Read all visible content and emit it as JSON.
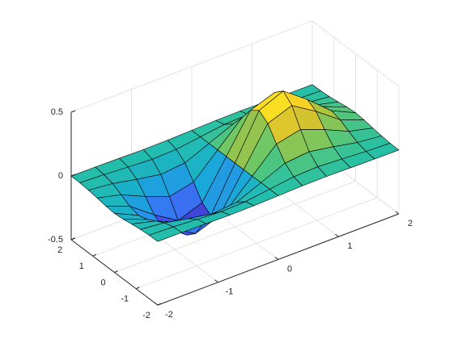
{
  "chart_data": {
    "type": "surface",
    "x": [
      -2,
      -1.6,
      -1.2,
      -0.8,
      -0.4,
      0,
      0.4,
      0.8,
      1.2,
      1.6,
      2
    ],
    "y": [
      -2,
      -1.6,
      -1.2,
      -0.8,
      -0.4,
      0,
      0.4,
      0.8,
      1.2,
      1.6,
      2
    ],
    "z": [
      [
        -0.001,
        -0.002,
        -0.005,
        -0.008,
        -0.006,
        0,
        0.006,
        0.008,
        0.005,
        0.002,
        0.001
      ],
      [
        -0.003,
        -0.01,
        -0.022,
        -0.033,
        -0.026,
        0,
        0.026,
        0.033,
        0.022,
        0.01,
        0.003
      ],
      [
        -0.009,
        -0.029,
        -0.067,
        -0.1,
        -0.081,
        0,
        0.081,
        0.1,
        0.067,
        0.029,
        0.009
      ],
      [
        -0.019,
        -0.065,
        -0.15,
        -0.222,
        -0.18,
        0,
        0.18,
        0.222,
        0.15,
        0.065,
        0.019
      ],
      [
        -0.031,
        -0.105,
        -0.242,
        -0.359,
        -0.29,
        0,
        0.29,
        0.359,
        0.242,
        0.105,
        0.031
      ],
      [
        -0.037,
        -0.124,
        -0.284,
        -0.422,
        -0.341,
        0,
        0.341,
        0.422,
        0.284,
        0.124,
        0.037
      ],
      [
        -0.031,
        -0.105,
        -0.242,
        -0.359,
        -0.29,
        0,
        0.29,
        0.359,
        0.242,
        0.105,
        0.031
      ],
      [
        -0.019,
        -0.065,
        -0.15,
        -0.222,
        -0.18,
        0,
        0.18,
        0.222,
        0.15,
        0.065,
        0.019
      ],
      [
        -0.009,
        -0.029,
        -0.067,
        -0.1,
        -0.081,
        0,
        0.081,
        0.1,
        0.067,
        0.029,
        0.009
      ],
      [
        -0.003,
        -0.01,
        -0.022,
        -0.033,
        -0.026,
        0,
        0.026,
        0.033,
        0.022,
        0.01,
        0.003
      ],
      [
        -0.001,
        -0.002,
        -0.005,
        -0.008,
        -0.006,
        0,
        0.006,
        0.008,
        0.005,
        0.002,
        0.001
      ]
    ],
    "xlim": [
      -2,
      2
    ],
    "ylim": [
      -2,
      2
    ],
    "zlim": [
      -0.5,
      0.5
    ],
    "xticks": [
      -2,
      -1,
      0,
      1,
      2
    ],
    "yticks": [
      -2,
      -1,
      0,
      1,
      2
    ],
    "zticks": [
      -0.5,
      0,
      0.5
    ],
    "grid": true,
    "colormap": [
      "#3e26a8",
      "#4354f3",
      "#2d8bef",
      "#17abd6",
      "#24bfa8",
      "#66c86b",
      "#c2c031",
      "#f9ce29",
      "#f9fb15"
    ],
    "edge_color": "#000000"
  }
}
